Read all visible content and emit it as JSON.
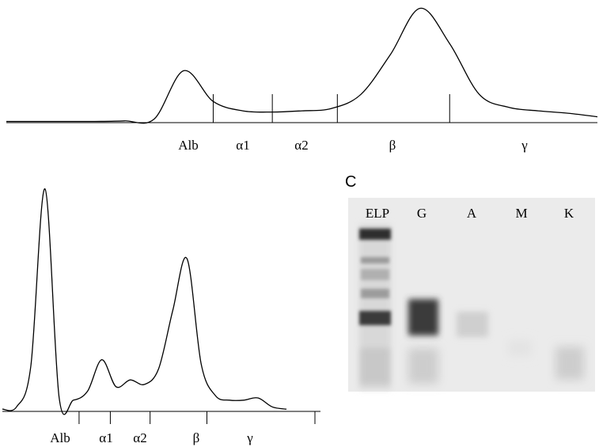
{
  "chart_data": [
    {
      "type": "line",
      "title": "",
      "xlabel": "",
      "ylabel": "",
      "fractions": [
        "Alb",
        "α1",
        "α2",
        "β",
        "γ"
      ],
      "x": [
        0,
        5,
        10,
        15,
        20,
        25,
        30,
        35,
        40,
        45,
        50,
        55,
        60,
        65,
        70,
        75,
        80,
        85,
        90,
        95,
        100
      ],
      "values": [
        1,
        1,
        1,
        1,
        1.5,
        3,
        44,
        18,
        10,
        9,
        10,
        12,
        24,
        58,
        97,
        67,
        24,
        13,
        10,
        8,
        5
      ],
      "boundaries": [
        35,
        45,
        56,
        75
      ],
      "grid": false
    },
    {
      "type": "line",
      "title": "",
      "xlabel": "",
      "ylabel": "",
      "fractions": [
        "Alb",
        "α1",
        "α2",
        "β",
        "γ"
      ],
      "x": [
        0,
        5,
        10,
        15,
        20,
        25,
        30,
        35,
        40,
        45,
        50,
        55,
        60,
        65,
        70,
        75,
        80,
        85,
        90,
        95,
        100
      ],
      "values": [
        1,
        2,
        20,
        99,
        6,
        5,
        9,
        23,
        11,
        14,
        12,
        19,
        45,
        68,
        21,
        7,
        5,
        5,
        6,
        2,
        1
      ],
      "boundaries": [
        27,
        38,
        52,
        72
      ],
      "grid": false
    },
    {
      "type": "table",
      "panel_label": "C",
      "lanes": [
        "ELP",
        "G",
        "A",
        "M",
        "K"
      ]
    }
  ],
  "colors": {
    "trace": "#000000",
    "gel_background": "#ebebeb",
    "band_dark": "#2a2a2a"
  }
}
